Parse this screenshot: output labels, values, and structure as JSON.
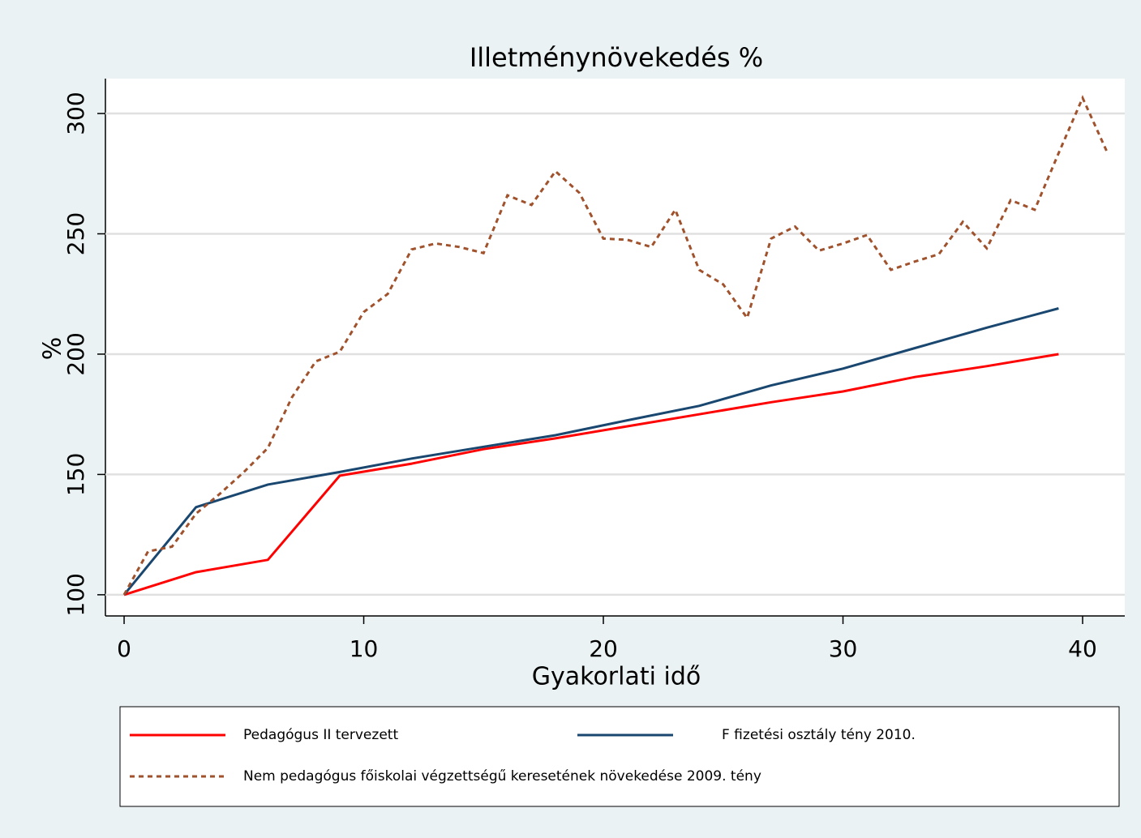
{
  "chart_data": {
    "type": "line",
    "title": "Illetménynövekedés %",
    "x_label": "Gyakorlati idő",
    "y_label": "%",
    "xlim": [
      -0.78,
      41.76
    ],
    "xticks": [
      0,
      10,
      20,
      30,
      40
    ],
    "ylim": [
      91.2,
      314.5
    ],
    "yticks": [
      100,
      150,
      200,
      250,
      300
    ],
    "grid": true,
    "series": [
      {
        "name": "Pedagógus II tervezett",
        "color": "#ff0000",
        "dash": "solid",
        "x": [
          0,
          3,
          6,
          9,
          12,
          15,
          18,
          21,
          24,
          27,
          30,
          33,
          36,
          39
        ],
        "values": [
          100,
          109.4,
          114.5,
          149.5,
          154.5,
          160.5,
          165,
          170,
          175,
          180,
          184.5,
          190.5,
          195,
          200
        ]
      },
      {
        "name": "F fizetési osztály tény 2010.",
        "color": "#1a476f",
        "dash": "solid",
        "x": [
          0,
          3,
          6,
          9,
          12,
          15,
          18,
          21,
          24,
          27,
          30,
          33,
          36,
          39
        ],
        "values": [
          100,
          136.4,
          145.8,
          151,
          156.6,
          161.5,
          166.3,
          172.5,
          178.5,
          187,
          194,
          202.5,
          211,
          219
        ]
      },
      {
        "name": "Nem pedagógus főiskolai végzettségű keresetének növekedése 2009. tény",
        "color": "#a0522d",
        "dash": "dash",
        "x": [
          0,
          1,
          2,
          3,
          4,
          5,
          6,
          7,
          8,
          9,
          10,
          11,
          12,
          13,
          14,
          15,
          16,
          17,
          18,
          19,
          20,
          21,
          22,
          23,
          24,
          25,
          26,
          27,
          28,
          29,
          30,
          31,
          32,
          33,
          34,
          35,
          36,
          37,
          38,
          39,
          40,
          41
        ],
        "values": [
          100,
          118,
          120,
          133.7,
          142,
          151,
          161,
          182,
          197,
          201,
          217.5,
          225,
          243.5,
          246,
          244.5,
          242,
          266,
          262,
          276,
          267,
          248,
          247.5,
          244.5,
          260,
          235,
          229,
          215,
          248,
          253,
          243,
          246,
          249.5,
          235,
          238.5,
          241.5,
          255,
          244,
          264,
          260,
          283.5,
          306.5,
          284.5
        ]
      }
    ]
  }
}
